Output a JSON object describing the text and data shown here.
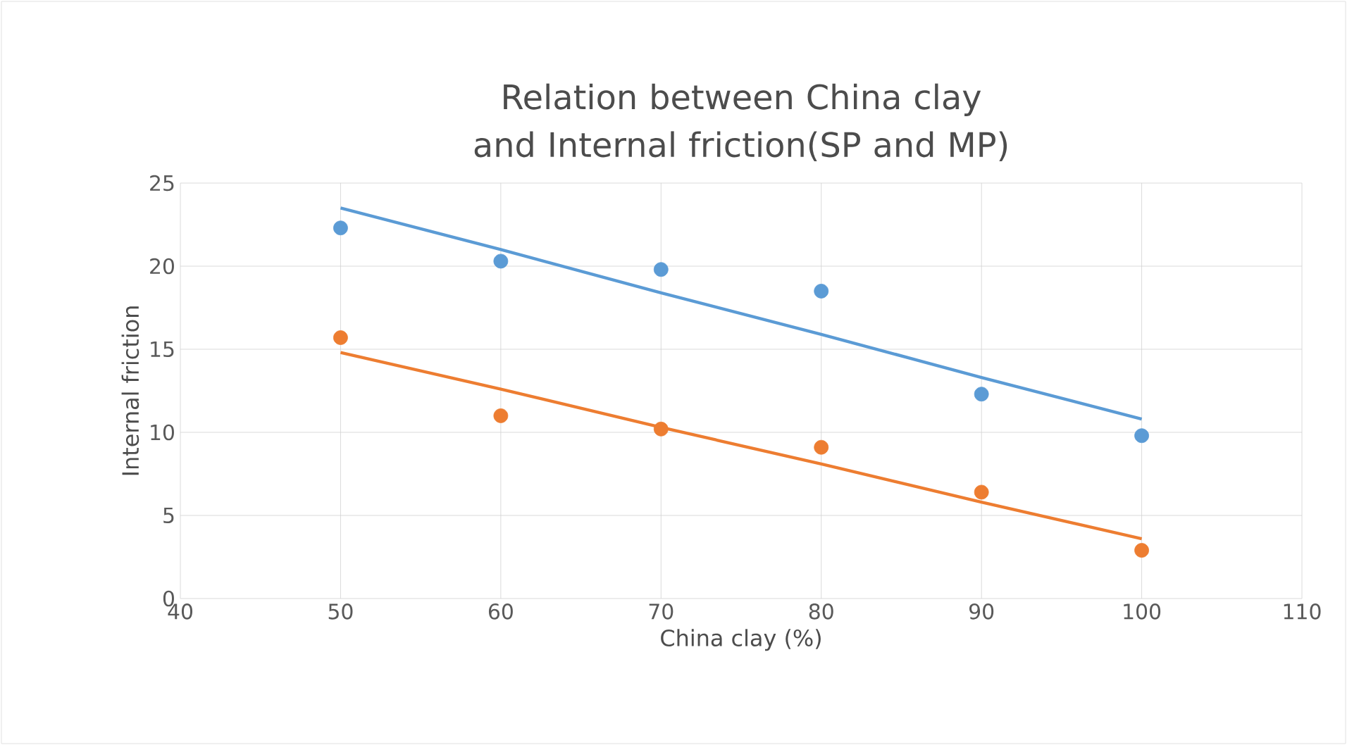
{
  "chart_data": {
    "type": "scatter",
    "title": "Relation between China clay and Internal friction(SP and MP)",
    "xlabel": "China clay (%)",
    "ylabel": "Internal friction",
    "x": [
      50,
      60,
      70,
      80,
      90,
      100
    ],
    "series": [
      {
        "color": "#5b9bd5",
        "values": [
          22.3,
          20.3,
          19.8,
          18.5,
          12.3,
          9.8
        ]
      },
      {
        "color": "#ed7d31",
        "values": [
          15.7,
          11.0,
          10.2,
          9.1,
          6.4,
          2.9
        ]
      },
      {
        "type": "line",
        "marker": "none",
        "color": "#5b9bd5",
        "values": [
          23.5,
          21.0,
          18.4,
          15.9,
          13.3,
          10.8
        ]
      },
      {
        "type": "line",
        "marker": "none",
        "color": "#ed7d31",
        "values": [
          14.8,
          12.6,
          10.3,
          8.1,
          5.8,
          3.6
        ]
      }
    ],
    "xlim": [
      40,
      110
    ],
    "xticks": [
      40,
      50,
      60,
      70,
      80,
      90,
      100,
      110
    ],
    "ylim": [
      0,
      25
    ],
    "yticks": [
      0,
      5,
      10,
      15,
      20,
      25
    ],
    "grid": true,
    "marker": "circle"
  }
}
